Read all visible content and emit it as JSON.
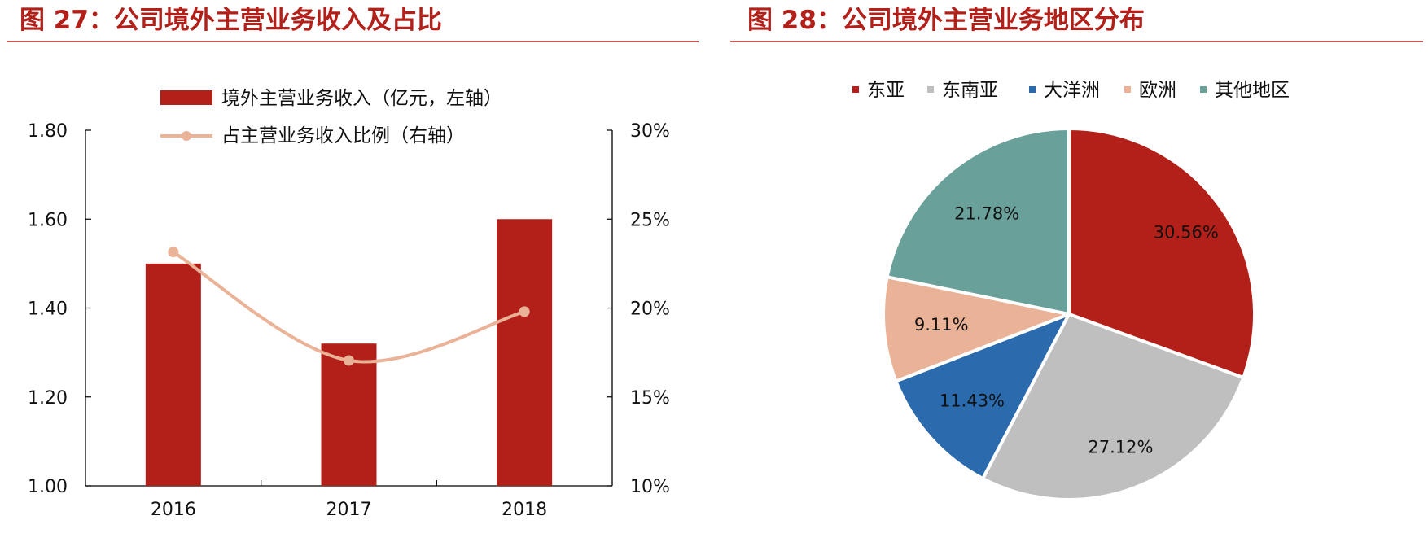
{
  "chart_data": [
    {
      "type": "bar",
      "title": "图 27：公司境外主营业务收入及占比",
      "categories": [
        "2016",
        "2017",
        "2018"
      ],
      "series": [
        {
          "name": "境外主营业务收入（亿元，左轴）",
          "kind": "bar",
          "axis": "left",
          "values": [
            1.5,
            1.32,
            1.6
          ],
          "color": "#b22019"
        },
        {
          "name": "占主营业务收入比例（右轴）",
          "kind": "line",
          "axis": "right",
          "values": [
            0.2315,
            0.1705,
            0.198
          ],
          "color": "#eab297"
        }
      ],
      "ylim_left": [
        1.0,
        1.8
      ],
      "ylim_right": [
        0.1,
        0.3
      ],
      "yticks_left": [
        "1.00",
        "1.20",
        "1.40",
        "1.60",
        "1.80"
      ],
      "yticks_right": [
        "10%",
        "15%",
        "20%",
        "25%",
        "30%"
      ],
      "legend_position": "top",
      "grid": false
    },
    {
      "type": "pie",
      "title": "图 28：公司境外主营业务地区分布",
      "labels": [
        "东亚",
        "东南亚",
        "大洋洲",
        "欧洲",
        "其他地区"
      ],
      "values": [
        30.56,
        27.12,
        11.43,
        9.11,
        21.78
      ],
      "value_labels": [
        "30.56%",
        "27.12%",
        "11.43%",
        "9.11%",
        "21.78%"
      ],
      "colors": [
        "#b22019",
        "#bfbfbf",
        "#2a6aad",
        "#eab297",
        "#69a09a"
      ],
      "legend_position": "top"
    }
  ]
}
